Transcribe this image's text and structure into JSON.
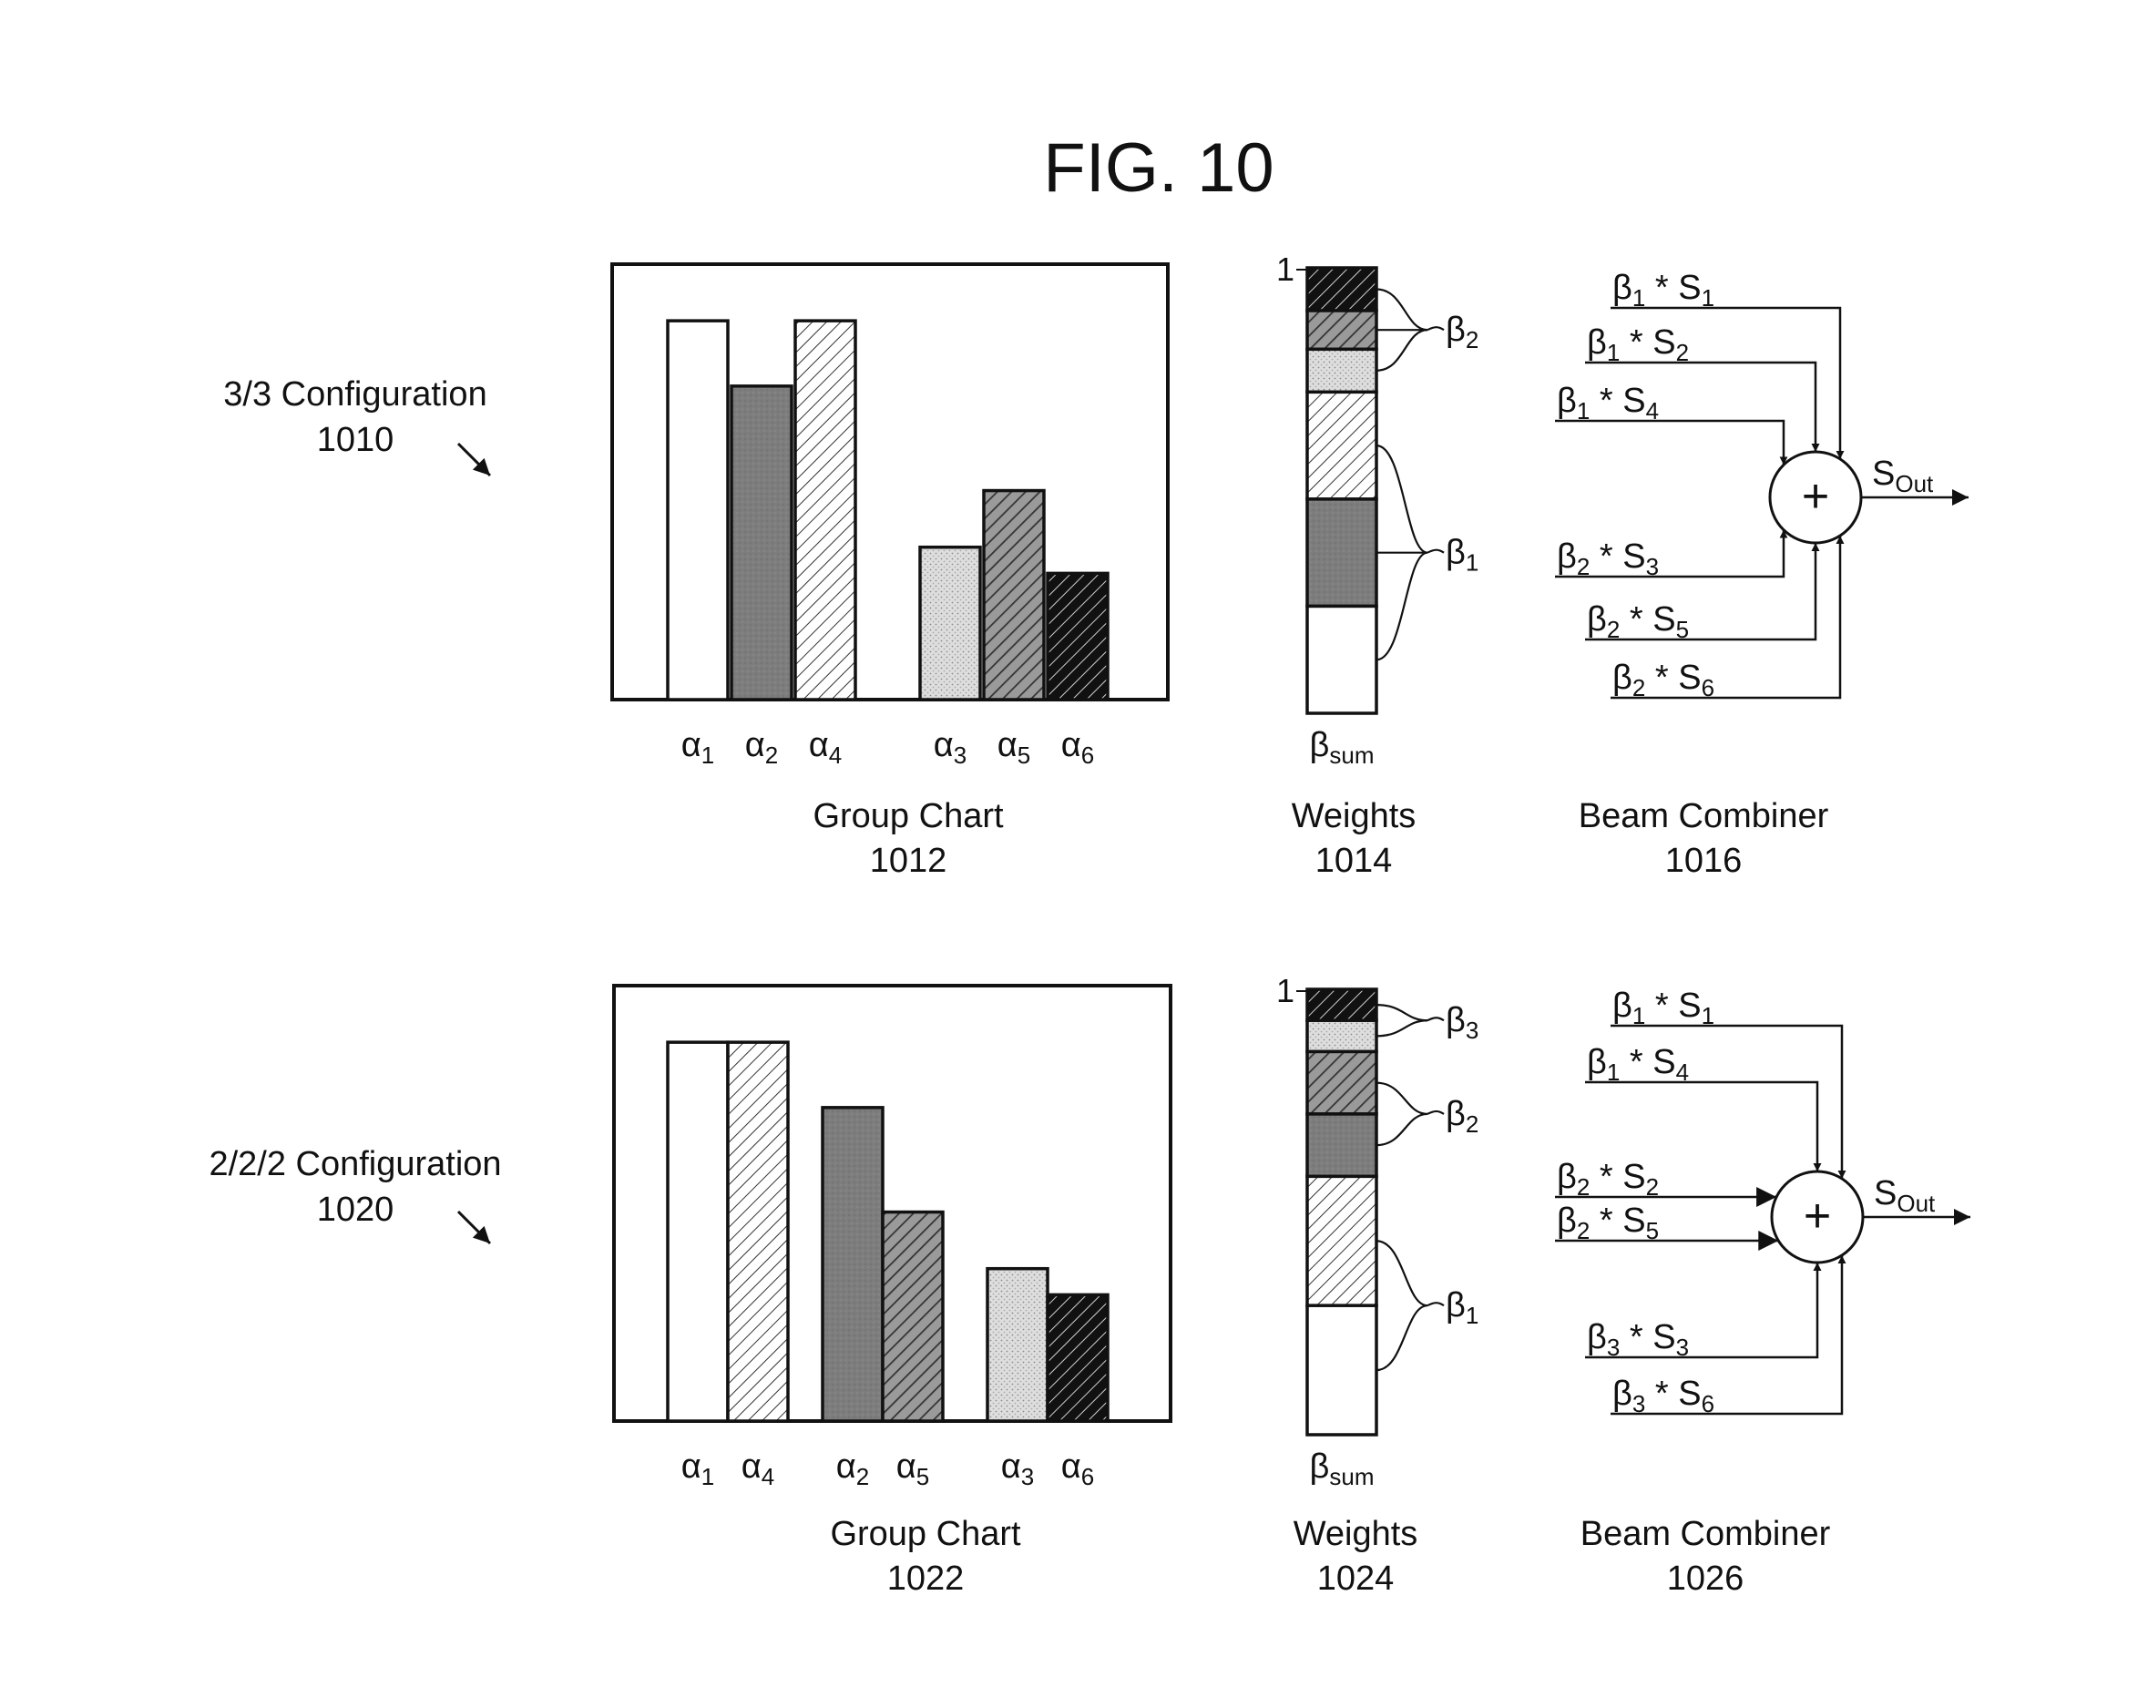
{
  "title": "FIG. 10",
  "configs": [
    {
      "name": "3/3 Configuration",
      "ref": "1010",
      "group_chart": {
        "caption": "Group Chart",
        "ref": "1012",
        "bars": [
          {
            "label": "α1",
            "base": "α",
            "sub": "1",
            "value": 0.87,
            "fill": "white"
          },
          {
            "label": "α2",
            "base": "α",
            "sub": "2",
            "value": 0.72,
            "fill": "dark"
          },
          {
            "label": "α4",
            "base": "α",
            "sub": "4",
            "value": 0.87,
            "fill": "light-hatch"
          },
          {
            "label": "α3",
            "base": "α",
            "sub": "3",
            "value": 0.35,
            "fill": "dots"
          },
          {
            "label": "α5",
            "base": "α",
            "sub": "5",
            "value": 0.48,
            "fill": "mid-hatch"
          },
          {
            "label": "α6",
            "base": "α",
            "sub": "6",
            "value": 0.29,
            "fill": "black-hatch"
          }
        ],
        "groups": [
          3,
          3
        ]
      },
      "weights": {
        "caption": "Weights",
        "ref": "1014",
        "top_label": "1",
        "bottom_label": {
          "base": "β",
          "sub": "sum"
        },
        "segments": [
          {
            "fill": "black-hatch",
            "value": 0.1
          },
          {
            "fill": "mid-hatch",
            "value": 0.09
          },
          {
            "fill": "dots",
            "value": 0.1
          },
          {
            "fill": "light-hatch",
            "value": 0.25
          },
          {
            "fill": "dark",
            "value": 0.25
          },
          {
            "fill": "white",
            "value": 0.25
          }
        ],
        "braces": [
          {
            "base": "β",
            "sub": "2",
            "segments": [
              0,
              1,
              2
            ]
          },
          {
            "base": "β",
            "sub": "1",
            "segments": [
              3,
              4,
              5
            ]
          }
        ]
      },
      "combiner": {
        "caption": "Beam Combiner",
        "ref": "1016",
        "symbol": "+",
        "output": {
          "base": "S",
          "sub": "Out"
        },
        "inputs": [
          {
            "beta_sub": "1",
            "s_sub": "1"
          },
          {
            "beta_sub": "1",
            "s_sub": "2"
          },
          {
            "beta_sub": "1",
            "s_sub": "4"
          },
          {
            "beta_sub": "2",
            "s_sub": "3"
          },
          {
            "beta_sub": "2",
            "s_sub": "5"
          },
          {
            "beta_sub": "2",
            "s_sub": "6"
          }
        ]
      }
    },
    {
      "name": "2/2/2 Configuration",
      "ref": "1020",
      "group_chart": {
        "caption": "Group Chart",
        "ref": "1022",
        "bars": [
          {
            "label": "α1",
            "base": "α",
            "sub": "1",
            "value": 0.87,
            "fill": "white"
          },
          {
            "label": "α4",
            "base": "α",
            "sub": "4",
            "value": 0.87,
            "fill": "light-hatch"
          },
          {
            "label": "α2",
            "base": "α",
            "sub": "2",
            "value": 0.72,
            "fill": "dark"
          },
          {
            "label": "α5",
            "base": "α",
            "sub": "5",
            "value": 0.48,
            "fill": "mid-hatch"
          },
          {
            "label": "α3",
            "base": "α",
            "sub": "3",
            "value": 0.35,
            "fill": "dots"
          },
          {
            "label": "α6",
            "base": "α",
            "sub": "6",
            "value": 0.29,
            "fill": "black-hatch"
          }
        ],
        "groups": [
          2,
          2,
          2
        ]
      },
      "weights": {
        "caption": "Weights",
        "ref": "1024",
        "top_label": "1",
        "bottom_label": {
          "base": "β",
          "sub": "sum"
        },
        "segments": [
          {
            "fill": "black-hatch",
            "value": 0.07
          },
          {
            "fill": "dots",
            "value": 0.07
          },
          {
            "fill": "mid-hatch",
            "value": 0.14
          },
          {
            "fill": "dark",
            "value": 0.14
          },
          {
            "fill": "light-hatch",
            "value": 0.29
          },
          {
            "fill": "white",
            "value": 0.29
          }
        ],
        "braces": [
          {
            "base": "β",
            "sub": "3",
            "segments": [
              0,
              1
            ]
          },
          {
            "base": "β",
            "sub": "2",
            "segments": [
              2,
              3
            ]
          },
          {
            "base": "β",
            "sub": "1",
            "segments": [
              4,
              5
            ]
          }
        ]
      },
      "combiner": {
        "caption": "Beam Combiner",
        "ref": "1026",
        "symbol": "+",
        "output": {
          "base": "S",
          "sub": "Out"
        },
        "inputs": [
          {
            "beta_sub": "1",
            "s_sub": "1"
          },
          {
            "beta_sub": "1",
            "s_sub": "4"
          },
          {
            "beta_sub": "2",
            "s_sub": "2"
          },
          {
            "beta_sub": "2",
            "s_sub": "5"
          },
          {
            "beta_sub": "3",
            "s_sub": "3"
          },
          {
            "beta_sub": "3",
            "s_sub": "6"
          }
        ]
      }
    }
  ]
}
